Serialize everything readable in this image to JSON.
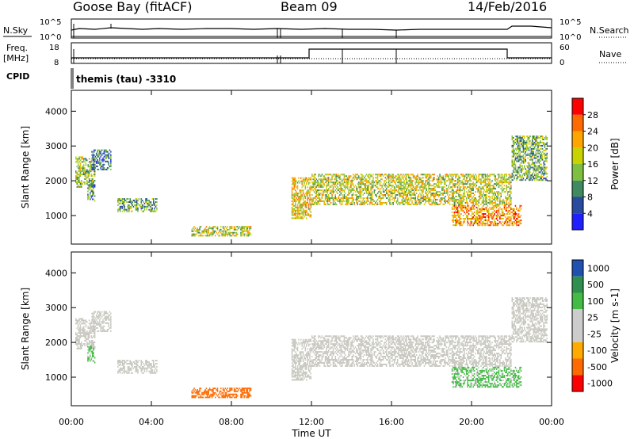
{
  "header": {
    "station": "Goose Bay (fitACF)",
    "beam": "Beam 09",
    "date": "14/Feb/2016"
  },
  "top_panels": {
    "nsky_label": "N.Sky",
    "nsearch_label": "N.Search",
    "freq_label_line1": "Freq.",
    "freq_label_line2": "[MHz]",
    "nave_label": "Nave",
    "cpid_label": "CPID",
    "cpid_text": "themis (tau) -3310",
    "nsky_ticks": [
      "10^5",
      "10^0"
    ],
    "nsearch_ticks": [
      "10^5",
      "10^0"
    ],
    "freq_ticks": [
      "18",
      "8"
    ],
    "nave_ticks": [
      "60",
      "0"
    ]
  },
  "colors": {
    "power_scale": [
      "#1f1fff",
      "#2a4aa0",
      "#3f8a60",
      "#7fbf3f",
      "#c8d200",
      "#ffa500",
      "#ff6a00",
      "#ff0000"
    ],
    "velocity_scale": [
      "#ff0000",
      "#ff6a00",
      "#ffaa00",
      "#cccccc",
      "#cccccc",
      "#44bb44",
      "#2f8f4f",
      "#2050b0"
    ],
    "ground_scatter": "#c8c8c0"
  },
  "chart_data": [
    {
      "type": "heatmap",
      "title": "",
      "xlabel": "",
      "ylabel": "Slant Range [km]",
      "xticks": [
        "00:00",
        "04:00",
        "08:00",
        "12:00",
        "16:00",
        "20:00",
        "00:00"
      ],
      "yticks": [
        "1000",
        "2000",
        "3000",
        "4000"
      ],
      "xlim": [
        0,
        24
      ],
      "ylim": [
        180,
        4600
      ],
      "colorbar_label": "Power [dB]",
      "colorbar_ticks": [
        "4",
        "8",
        "12",
        "16",
        "20",
        "24",
        "28"
      ],
      "colorbar_range": [
        0,
        30
      ],
      "regions": [
        {
          "t0": 0.2,
          "t1": 1.2,
          "r0": 1800,
          "r1": 2700,
          "value": 14
        },
        {
          "t0": 1.0,
          "t1": 2.0,
          "r0": 2300,
          "r1": 2900,
          "value": 8
        },
        {
          "t0": 0.8,
          "t1": 1.2,
          "r0": 1400,
          "r1": 1900,
          "value": 10
        },
        {
          "t0": 2.3,
          "t1": 4.3,
          "r0": 1100,
          "r1": 1500,
          "value": 12
        },
        {
          "t0": 6.0,
          "t1": 9.0,
          "r0": 400,
          "r1": 700,
          "value": 16
        },
        {
          "t0": 11.0,
          "t1": 12.0,
          "r0": 900,
          "r1": 2100,
          "value": 18
        },
        {
          "t0": 12.0,
          "t1": 22.0,
          "r0": 1300,
          "r1": 2200,
          "value": 16
        },
        {
          "t0": 19.0,
          "t1": 22.5,
          "r0": 700,
          "r1": 1300,
          "value": 22
        },
        {
          "t0": 22.0,
          "t1": 23.8,
          "r0": 2000,
          "r1": 3300,
          "value": 12
        }
      ]
    },
    {
      "type": "heatmap",
      "title": "",
      "xlabel": "Time UT",
      "ylabel": "Slant Range [km]",
      "xticks": [
        "00:00",
        "04:00",
        "08:00",
        "12:00",
        "16:00",
        "20:00",
        "00:00"
      ],
      "yticks": [
        "1000",
        "2000",
        "3000",
        "4000"
      ],
      "xlim": [
        0,
        24
      ],
      "ylim": [
        180,
        4600
      ],
      "colorbar_label": "Velocity [m s-1]",
      "colorbar_ticks": [
        "1000",
        "500",
        "100",
        "25",
        "-25",
        "-100",
        "-500",
        "-1000"
      ],
      "regions": [
        {
          "t0": 0.2,
          "t1": 1.2,
          "r0": 1800,
          "r1": 2700,
          "value": 0
        },
        {
          "t0": 1.0,
          "t1": 2.0,
          "r0": 2300,
          "r1": 2900,
          "value": 0
        },
        {
          "t0": 0.8,
          "t1": 1.2,
          "r0": 1400,
          "r1": 1900,
          "value": 150
        },
        {
          "t0": 2.3,
          "t1": 4.3,
          "r0": 1100,
          "r1": 1500,
          "value": 0
        },
        {
          "t0": 6.0,
          "t1": 9.0,
          "r0": 400,
          "r1": 700,
          "value": -300
        },
        {
          "t0": 11.0,
          "t1": 12.0,
          "r0": 900,
          "r1": 2100,
          "value": 0
        },
        {
          "t0": 12.0,
          "t1": 22.0,
          "r0": 1300,
          "r1": 2200,
          "value": 0
        },
        {
          "t0": 19.0,
          "t1": 22.5,
          "r0": 700,
          "r1": 1300,
          "value": 150
        },
        {
          "t0": 22.0,
          "t1": 23.8,
          "r0": 2000,
          "r1": 3300,
          "value": 0
        }
      ]
    }
  ]
}
